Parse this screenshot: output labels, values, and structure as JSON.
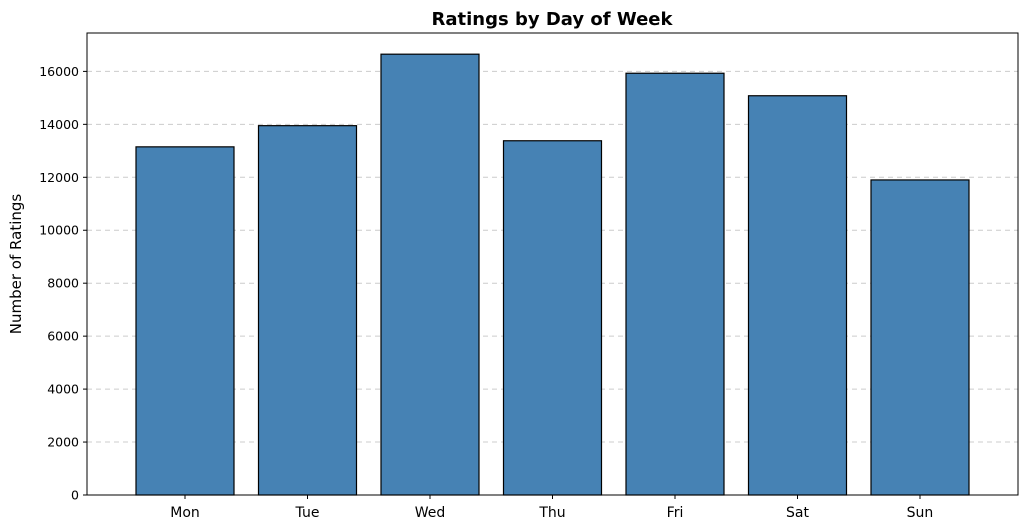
{
  "chart_data": {
    "type": "bar",
    "title": "Ratings by Day of Week",
    "xlabel": "",
    "ylabel": "Number of Ratings",
    "categories": [
      "Mon",
      "Tue",
      "Wed",
      "Thu",
      "Fri",
      "Sat",
      "Sun"
    ],
    "values": [
      13150,
      13950,
      16650,
      13380,
      15930,
      15080,
      11900
    ],
    "ylim": [
      0,
      17450
    ],
    "yticks": [
      0,
      2000,
      4000,
      6000,
      8000,
      10000,
      12000,
      14000,
      16000
    ],
    "grid": "y-dashed",
    "bar_color": "#4682b4",
    "edge_color": "#000000"
  }
}
